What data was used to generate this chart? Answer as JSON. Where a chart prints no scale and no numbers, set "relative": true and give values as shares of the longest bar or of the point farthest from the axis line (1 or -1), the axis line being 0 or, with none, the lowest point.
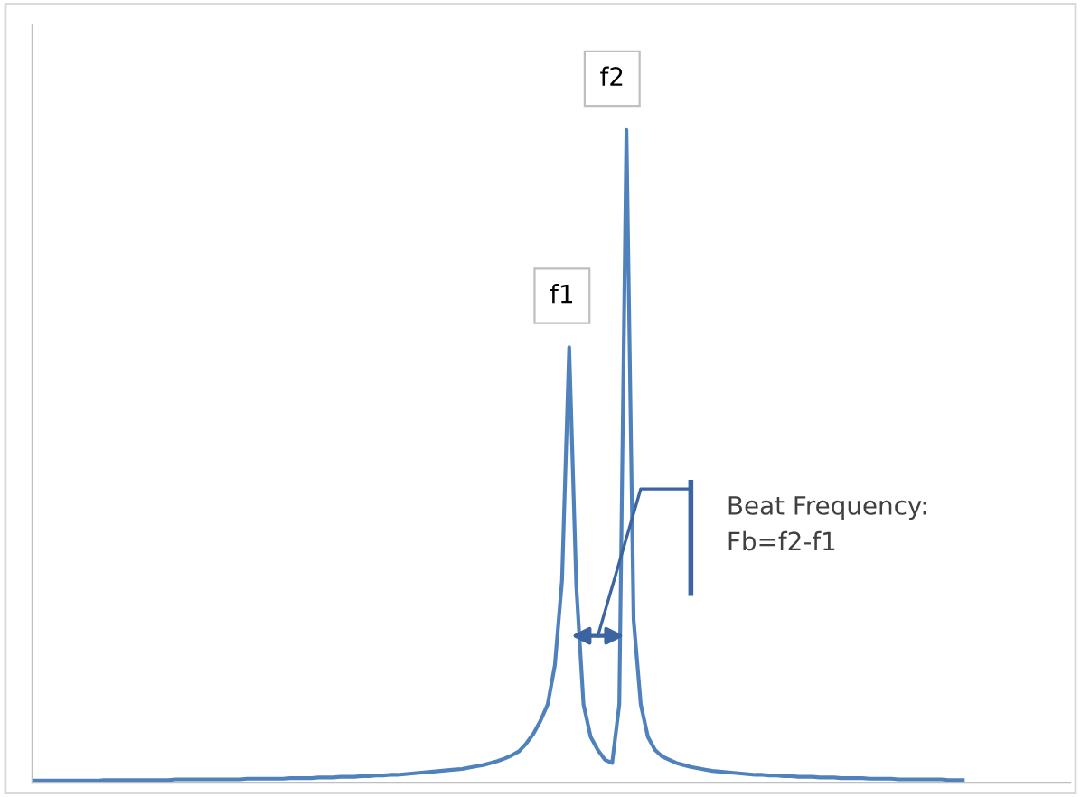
{
  "chart_data": {
    "type": "line",
    "relative": true,
    "categories": [
      null,
      null,
      null,
      null,
      null,
      null,
      null,
      null,
      null,
      null,
      null,
      null,
      null,
      null,
      null,
      null,
      null,
      null,
      null,
      null,
      null,
      null,
      null,
      null,
      null,
      null,
      null,
      null,
      null,
      null,
      null,
      null,
      null,
      null,
      null,
      null,
      null,
      null,
      null,
      null,
      null,
      null,
      null,
      null,
      null,
      null,
      null,
      null,
      null,
      null,
      null,
      null,
      null,
      null,
      null,
      null,
      null,
      null,
      null,
      null,
      null,
      null,
      null,
      null,
      null,
      null,
      null,
      null,
      null,
      null,
      null,
      null,
      null,
      null,
      null,
      null,
      null,
      null,
      null,
      null,
      null,
      null,
      null,
      null,
      null,
      null,
      null,
      null,
      null,
      null,
      null,
      null,
      null,
      null,
      null,
      null,
      null,
      null,
      null,
      null,
      null,
      null,
      null,
      null,
      null,
      null,
      null,
      null,
      null,
      null,
      null,
      null,
      null,
      null,
      null,
      null,
      null,
      null,
      null,
      null,
      null,
      null,
      null,
      null,
      null,
      null,
      null,
      null,
      null,
      null,
      null
    ],
    "series": [
      {
        "color": "#4f81bd",
        "values": [
          0.003,
          0.003,
          0.003,
          0.003,
          0.003,
          0.003,
          0.003,
          0.003,
          0.003,
          0.003,
          0.004,
          0.004,
          0.004,
          0.004,
          0.004,
          0.004,
          0.004,
          0.004,
          0.004,
          0.004,
          0.005,
          0.005,
          0.005,
          0.005,
          0.005,
          0.005,
          0.005,
          0.005,
          0.005,
          0.005,
          0.006,
          0.006,
          0.006,
          0.006,
          0.006,
          0.006,
          0.007,
          0.007,
          0.007,
          0.007,
          0.008,
          0.008,
          0.008,
          0.009,
          0.009,
          0.009,
          0.01,
          0.01,
          0.011,
          0.011,
          0.012,
          0.012,
          0.013,
          0.014,
          0.015,
          0.016,
          0.017,
          0.018,
          0.019,
          0.02,
          0.021,
          0.023,
          0.025,
          0.027,
          0.03,
          0.033,
          0.037,
          0.042,
          0.048,
          0.06,
          0.075,
          0.095,
          0.12,
          0.18,
          0.31,
          0.667,
          0.3,
          0.12,
          0.07,
          0.05,
          0.035,
          0.03,
          0.12,
          1.0,
          0.25,
          0.12,
          0.07,
          0.05,
          0.04,
          0.035,
          0.03,
          0.027,
          0.024,
          0.022,
          0.02,
          0.018,
          0.017,
          0.016,
          0.015,
          0.014,
          0.013,
          0.012,
          0.012,
          0.011,
          0.011,
          0.01,
          0.01,
          0.009,
          0.009,
          0.009,
          0.008,
          0.008,
          0.008,
          0.007,
          0.007,
          0.007,
          0.007,
          0.006,
          0.006,
          0.006,
          0.006,
          0.005,
          0.005,
          0.005,
          0.005,
          0.005,
          0.005,
          0.005,
          0.004,
          0.004,
          0.004
        ]
      }
    ],
    "annotations": [
      "f1",
      "f2",
      "Beat Frequency:\nFb=f2-f1"
    ],
    "grid": false,
    "legend": false,
    "marker": "none",
    "line_style": "solid"
  }
}
